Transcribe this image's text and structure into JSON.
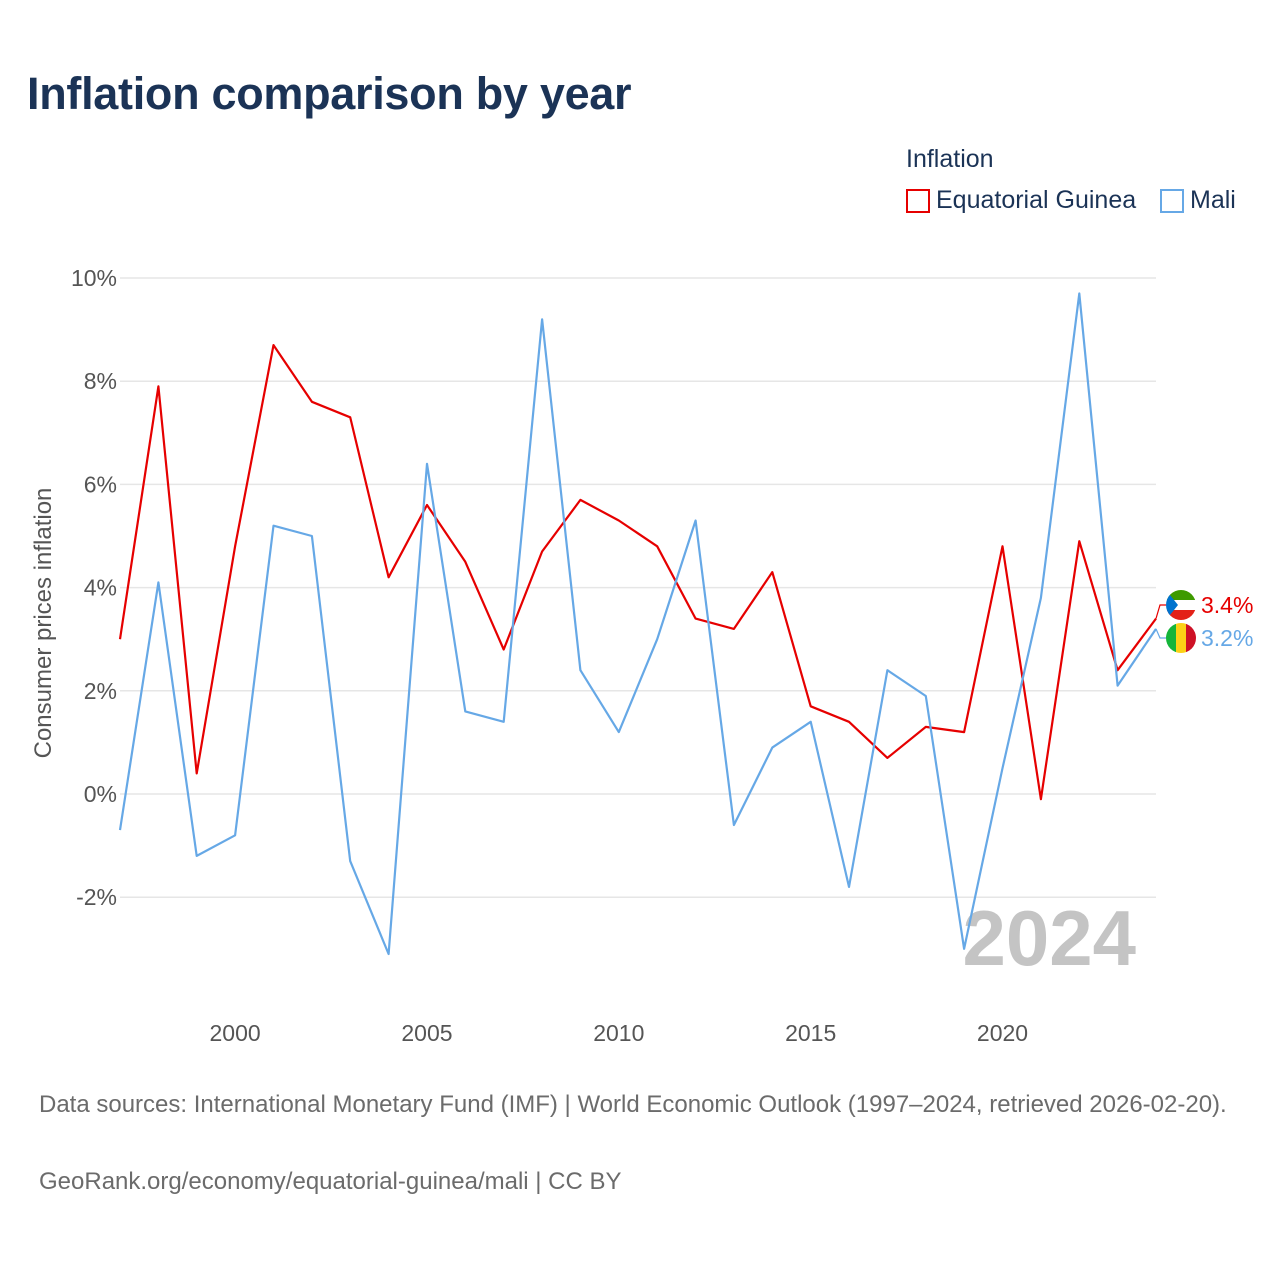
{
  "title": "Inflation comparison by year",
  "legend": {
    "title": "Inflation",
    "items": [
      {
        "label": "Equatorial Guinea",
        "color": "#e60000"
      },
      {
        "label": "Mali",
        "color": "#66a8e6"
      }
    ]
  },
  "chart_data": {
    "type": "line",
    "ylabel": "Consumer prices inflation",
    "xlabel": "",
    "ylim": [
      -3.5,
      10.5
    ],
    "xlim": [
      1997,
      2024
    ],
    "yticks": [
      -2,
      0,
      2,
      4,
      6,
      8,
      10
    ],
    "ytick_labels": [
      "-2%",
      "0%",
      "2%",
      "4%",
      "6%",
      "8%",
      "10%"
    ],
    "xticks": [
      2000,
      2005,
      2010,
      2015,
      2020
    ],
    "xtick_labels": [
      "2000",
      "2005",
      "2010",
      "2015",
      "2020"
    ],
    "year_watermark": "2024",
    "x": [
      1997,
      1998,
      1999,
      2000,
      2001,
      2002,
      2003,
      2004,
      2005,
      2006,
      2007,
      2008,
      2009,
      2010,
      2011,
      2012,
      2013,
      2014,
      2015,
      2016,
      2017,
      2018,
      2019,
      2020,
      2021,
      2022,
      2023,
      2024
    ],
    "series": [
      {
        "name": "Equatorial Guinea",
        "color": "#e60000",
        "end_label": "3.4%",
        "values": [
          3.0,
          7.9,
          0.4,
          4.8,
          8.7,
          7.6,
          7.3,
          4.2,
          5.6,
          4.5,
          2.8,
          4.7,
          5.7,
          5.3,
          4.8,
          3.4,
          3.2,
          4.3,
          1.7,
          1.4,
          0.7,
          1.3,
          1.2,
          4.8,
          -0.1,
          4.9,
          2.4,
          3.4
        ]
      },
      {
        "name": "Mali",
        "color": "#66a8e6",
        "end_label": "3.2%",
        "values": [
          -0.7,
          4.1,
          -1.2,
          -0.8,
          5.2,
          5.0,
          -1.3,
          -3.1,
          6.4,
          1.6,
          1.4,
          9.2,
          2.4,
          1.2,
          3.0,
          5.3,
          -0.6,
          0.9,
          1.4,
          -1.8,
          2.4,
          1.9,
          -3.0,
          0.5,
          3.8,
          9.7,
          2.1,
          3.2
        ]
      }
    ]
  },
  "footer": {
    "sources": "Data sources: International Monetary Fund (IMF) | World Economic Outlook (1997–2024, retrieved 2026-02-20).",
    "credit": "GeoRank.org/economy/equatorial-guinea/mali | CC BY"
  }
}
